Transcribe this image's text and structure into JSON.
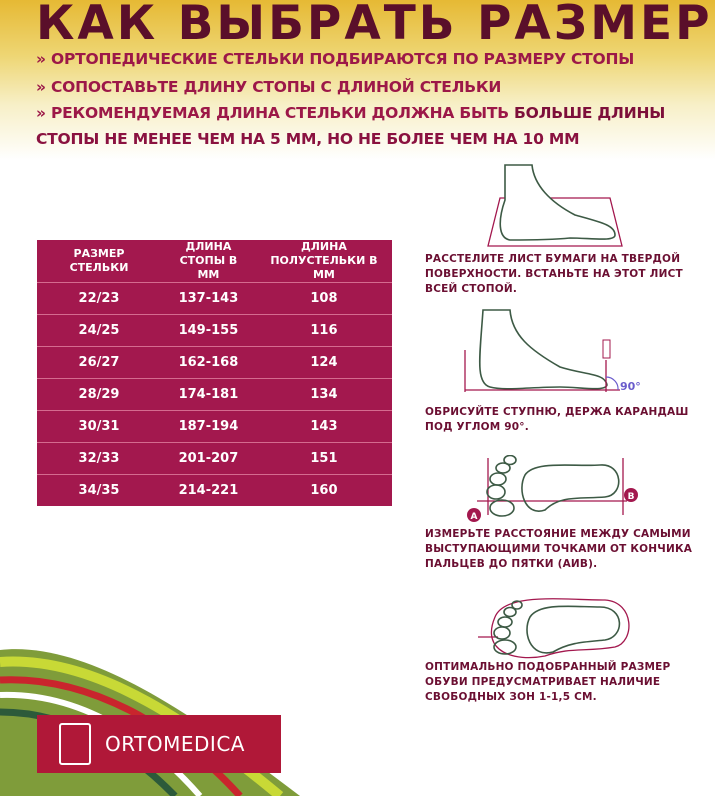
{
  "header": {
    "title": "КАК ВЫБРАТЬ РАЗМЕР?",
    "lines": [
      "» ОРТОПЕДИЧЕСКИЕ СТЕЛЬКИ ПОДБИРАЮТСЯ ПО РАЗМЕРУ СТОПЫ",
      "» СОПОСТАВЬТЕ ДЛИНУ СТОПЫ С ДЛИНОЙ СТЕЛЬКИ",
      "» РЕКОМЕНДУЕМАЯ ДЛИНА СТЕЛЬКИ ДОЛЖНА БЫТЬ "
    ],
    "emphasis_1": "БОЛЬШЕ ДЛИНЫ",
    "emphasis_2": "СТОПЫ НЕ МЕНЕЕ ЧЕМ НА 5 ММ, НО НЕ БОЛЕЕ ЧЕМ НА 10 ММ"
  },
  "table": {
    "headers": [
      "РАЗМЕР СТЕЛЬКИ",
      "ДЛИНА СТОПЫ В ММ",
      "ДЛИНА ПОЛУСТЕЛЬКИ В ММ"
    ],
    "rows": [
      [
        "22/23",
        "137-143",
        "108"
      ],
      [
        "24/25",
        "149-155",
        "116"
      ],
      [
        "26/27",
        "162-168",
        "124"
      ],
      [
        "28/29",
        "174-181",
        "134"
      ],
      [
        "30/31",
        "187-194",
        "143"
      ],
      [
        "32/33",
        "201-207",
        "151"
      ],
      [
        "34/35",
        "214-221",
        "160"
      ]
    ]
  },
  "steps": [
    "РАССТЕЛИТЕ ЛИСТ БУМАГИ НА ТВЕРДОЙ ПОВЕРХНОСТИ. ВСТАНЬТЕ НА ЭТОТ ЛИСТ ВСЕЙ СТОПОЙ.",
    "ОБРИСУЙТЕ СТУПНЮ, ДЕРЖА КАРАНДАШ ПОД УГЛОМ 90°.",
    "ИЗМЕРЬТЕ РАССТОЯНИЕ МЕЖДУ САМЫМИ ВЫСТУПАЮЩИМИ ТОЧКАМИ ОТ КОНЧИКА ПАЛЬЦЕВ ДО ПЯТКИ (АИВ).",
    "ОПТИМАЛЬНО ПОДОБРАННЫЙ РАЗМЕР ОБУВИ ПРЕДУСМАТРИВАЕТ НАЛИЧИЕ СВОБОДНЫХ ЗОН 1-1,5 СМ."
  ],
  "labels": {
    "angle": "90°",
    "point_a": "A",
    "point_b": "B"
  },
  "brand": {
    "name": "ORTOMEDICA"
  },
  "colors": {
    "title": "#5a0f2a",
    "accent": "#9c1848",
    "table": "#a3184e",
    "logo": "#b01838",
    "outline": "#3d5a45"
  }
}
